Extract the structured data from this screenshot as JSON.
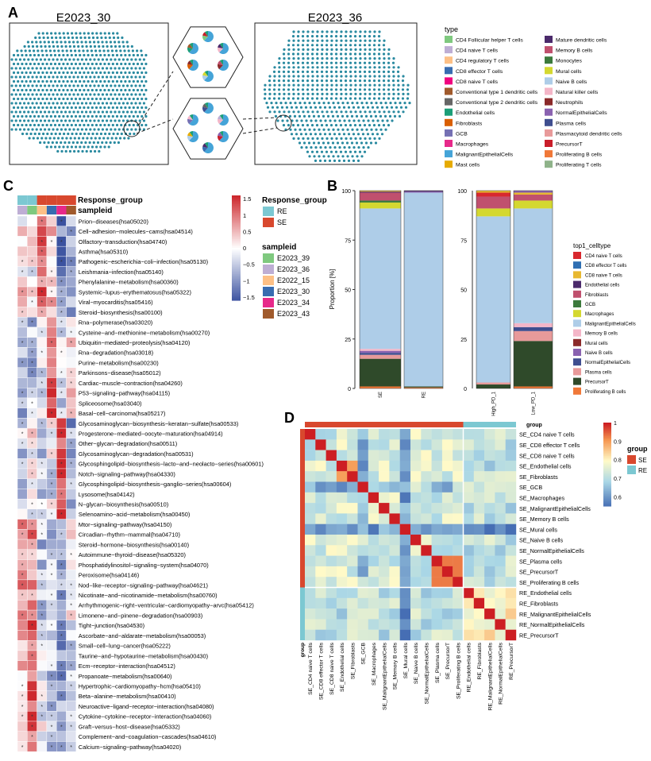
{
  "panel_letters": [
    "A",
    "B",
    "C",
    "D"
  ],
  "panel_a": {
    "left_title": "E2023_30",
    "right_title": "E2023_36",
    "legend_title": "type",
    "types": [
      {
        "label": "CD4 Follicular helper T cells",
        "color": "#7fc97f"
      },
      {
        "label": "CD4 naive T cells",
        "color": "#beaed4"
      },
      {
        "label": "CD4 regulatory T cells",
        "color": "#fdc086"
      },
      {
        "label": "CD8 effector T cells",
        "color": "#386cb0"
      },
      {
        "label": "CD8 naive T cells",
        "color": "#f0027f"
      },
      {
        "label": "Conventional type 1 dendritic cells",
        "color": "#a05a2c"
      },
      {
        "label": "Conventional type 2 dendritic cells",
        "color": "#666666"
      },
      {
        "label": "Endothelial cells",
        "color": "#1b9e77"
      },
      {
        "label": "Fibroblasts",
        "color": "#d95f02"
      },
      {
        "label": "GCB",
        "color": "#7570b3"
      },
      {
        "label": "Macrophages",
        "color": "#e7298a"
      },
      {
        "label": "MalignantEpithelialCells",
        "color": "#45a4d8"
      },
      {
        "label": "Mast cells",
        "color": "#e6ab02"
      },
      {
        "label": "Mature dendritic cells",
        "color": "#4b2a6b"
      },
      {
        "label": "Memory B cells",
        "color": "#c0506e"
      },
      {
        "label": "Monocytes",
        "color": "#3c7a3c"
      },
      {
        "label": "Mural cells",
        "color": "#d4d830"
      },
      {
        "label": "Naive B cells",
        "color": "#aecde8"
      },
      {
        "label": "Natural killer cells",
        "color": "#f4b6c8"
      },
      {
        "label": "Neutrophils",
        "color": "#8b2a2a"
      },
      {
        "label": "NormalEpithelialCells",
        "color": "#8a62b0"
      },
      {
        "label": "Plasma cells",
        "color": "#3f4e8f"
      },
      {
        "label": "Plasmacytoid dendritic cells",
        "color": "#e89a9a"
      },
      {
        "label": "PrecursorT",
        "color": "#c91e2a"
      },
      {
        "label": "Proliferating B cells",
        "color": "#f07838"
      },
      {
        "label": "Proliferating T cells",
        "color": "#8fb38a"
      }
    ]
  },
  "panel_b": {
    "ylabel": "Proportion [%]",
    "yticks": [
      "0",
      "25",
      "50",
      "75",
      "100"
    ],
    "legend_title": "top1_celltype",
    "legend": [
      {
        "label": "CD4 naive T cells",
        "color": "#d8282e"
      },
      {
        "label": "CD8 effector T cells",
        "color": "#2f6fb3"
      },
      {
        "label": "CD8 naive T cells",
        "color": "#e8b830"
      },
      {
        "label": "Endothelial cells",
        "color": "#4b2a6b"
      },
      {
        "label": "Fibroblasts",
        "color": "#c0506e"
      },
      {
        "label": "GCB",
        "color": "#3c7a3c"
      },
      {
        "label": "Macrophages",
        "color": "#d4d830"
      },
      {
        "label": "MalignantEpithelialCells",
        "color": "#aecde8"
      },
      {
        "label": "Memory B cells",
        "color": "#f4b6c8"
      },
      {
        "label": "Mural cells",
        "color": "#8b2a2a"
      },
      {
        "label": "Naive B cells",
        "color": "#8a62b0"
      },
      {
        "label": "NormalEpithelialCells",
        "color": "#3f4e8f"
      },
      {
        "label": "Plasma cells",
        "color": "#e89a9a"
      },
      {
        "label": "PrecursorT",
        "color": "#2f4a2a"
      },
      {
        "label": "Proliferating B  cells",
        "color": "#f07838"
      }
    ],
    "bars": [
      {
        "label": "SE",
        "segments": [
          [
            "Proliferating B  cells",
            1
          ],
          [
            "PrecursorT",
            14
          ],
          [
            "Plasma cells",
            2
          ],
          [
            "NormalEpithelialCells",
            1
          ],
          [
            "Naive B cells",
            1
          ],
          [
            "Memory B cells",
            1
          ],
          [
            "MalignantEpithelialCells",
            71
          ],
          [
            "Macrophages",
            3
          ],
          [
            "GCB",
            1
          ],
          [
            "Fibroblasts",
            4
          ],
          [
            "Endothelial cells",
            0.5
          ],
          [
            "CD8 naive T cells",
            0.5
          ]
        ]
      },
      {
        "label": "RE",
        "segments": [
          [
            "Proliferating B  cells",
            0.5
          ],
          [
            "PrecursorT",
            0.5
          ],
          [
            "MalignantEpithelialCells",
            98
          ],
          [
            "Naive B cells",
            0.5
          ],
          [
            "Endothelial cells",
            0.5
          ]
        ]
      },
      {
        "label": "High_PD_1",
        "segments": [
          [
            "PrecursorT",
            2
          ],
          [
            "Plasma cells",
            1
          ],
          [
            "MalignantEpithelialCells",
            84
          ],
          [
            "Macrophages",
            4
          ],
          [
            "Fibroblasts",
            6
          ],
          [
            "CD4 naive T cells",
            2
          ],
          [
            "CD8 naive T cells",
            1
          ]
        ]
      },
      {
        "label": "Low_PD_1",
        "segments": [
          [
            "Proliferating B  cells",
            1
          ],
          [
            "PrecursorT",
            23
          ],
          [
            "Plasma cells",
            5
          ],
          [
            "NormalEpithelialCells",
            2
          ],
          [
            "Memory B cells",
            2
          ],
          [
            "MalignantEpithelialCells",
            58
          ],
          [
            "Macrophages",
            4
          ],
          [
            "Fibroblasts",
            3
          ],
          [
            "CD8 naive T cells",
            1
          ],
          [
            "Naive B cells",
            1
          ]
        ]
      }
    ]
  },
  "panel_c": {
    "row_labels": [
      "Response_group",
      "sampleid"
    ],
    "scale_ticks": [
      "1.5",
      "1",
      "0.5",
      "0",
      "−0.5",
      "−1",
      "−1.5"
    ],
    "legend_response_title": "Response_group",
    "response_levels": [
      {
        "label": "RE",
        "color": "#7cc8d2"
      },
      {
        "label": "SE",
        "color": "#d8482e"
      }
    ],
    "legend_sample_title": "sampleid",
    "samples": [
      {
        "label": "E2023_39",
        "color": "#7fc97f"
      },
      {
        "label": "E2023_36",
        "color": "#beaed4"
      },
      {
        "label": "E2022_15",
        "color": "#fdc086"
      },
      {
        "label": "E2023_30",
        "color": "#386cb0"
      },
      {
        "label": "E2023_34",
        "color": "#e7298a"
      },
      {
        "label": "E2023_43",
        "color": "#a05a2c"
      }
    ],
    "col_response": [
      "RE",
      "RE",
      "SE",
      "SE",
      "SE",
      "SE"
    ],
    "col_sample": [
      "E2023_36",
      "E2023_39",
      "E2022_15",
      "E2023_30",
      "E2023_34",
      "E2023_43"
    ],
    "pathways": [
      "Prion−diseases(hsa05020)",
      "Cell−adhesion−molecules−cams(hsa04514)",
      "Olfactory−transduction(hsa04740)",
      "Asthma(hsa05310)",
      "Pathogenic−escherichia−coli−infection(hsa05130)",
      "Leishmania−infection(hsa05140)",
      "Phenylalanine−metabolism(hsa00360)",
      "Systemic−lupus−erythematosus(hsa05322)",
      "Viral−myocarditis(hsa05416)",
      "Steroid−biosynthesis(hsa00100)",
      "Rna−polymerase(hsa03020)",
      "Cysteine−and−methionine−metabolism(hsa00270)",
      "Ubiquitin−mediated−proteolysis(hsa04120)",
      "Rna−degradation(hsa03018)",
      "Purine−metabolism(hsa00230)",
      "Parkinsons−disease(hsa05012)",
      "Cardiac−muscle−contraction(hsa04260)",
      "P53−signaling−pathway(hsa04115)",
      "Spliceosome(hsa03040)",
      "Basal−cell−carcinoma(hsa05217)",
      "Glycosaminoglycan−biosynthesis−keratan−sulfate(hsa00533)",
      "Progesterone−mediated−oocyte−maturation(hsa04914)",
      "Other−glycan−degradation(hsa00511)",
      "Glycosaminoglycan−degradation(hsa00531)",
      "Glycosphingolipid−biosynthesis−lacto−and−neolacto−series(hsa00601)",
      "Notch−signaling−pathway(hsa04330)",
      "Glycosphingolipid−biosynthesis−ganglio−series(hsa00604)",
      "Lysosome(hsa04142)",
      "N−glycan−biosynthesis(hsa00510)",
      "Selenoamino−acid−metabolism(hsa00450)",
      "Mtor−signaling−pathway(hsa04150)",
      "Circadian−rhythm−mammal(hsa04710)",
      "Steroid−hormone−biosynthesis(hsa00140)",
      "Autoimmune−thyroid−disease(hsa05320)",
      "Phosphatidylinositol−signaling−system(hsa04070)",
      "Peroxisome(hsa04146)",
      "Nod−like−receptor−signaling−pathway(hsa04621)",
      "Nicotinate−and−nicotinamide−metabolism(hsa00760)",
      "Arrhythmogenic−right−ventricular−cardiomyopathy−arvc(hsa05412)",
      "Limonene−and−pinene−degradation(hsa00903)",
      "Tight−junction(hsa04530)",
      "Ascorbate−and−aldarate−metabolism(hsa00053)",
      "Small−cell−lung−cancer(hsa05222)",
      "Taurine−and−hypotaurine−metabolism(hsa00430)",
      "Ecm−receptor−interaction(hsa04512)",
      "Propanoate−metabolism(hsa00640)",
      "Hypertrophic−cardiomyopathy−hcm(hsa05410)",
      "Beta−alanine−metabolism(hsa00410)",
      "Neuroactive−ligand−receptor−interaction(hsa04080)",
      "Cytokine−cytokine−receptor−interaction(hsa04060)",
      "Graft−versus−host−disease(hsa05332)",
      "Complement−and−coagulation−cascades(hsa04610)",
      "Calcium−signaling−pathway(hsa04020)"
    ]
  },
  "panel_d": {
    "group_label": "group",
    "scale_ticks": [
      "1",
      "0.9",
      "0.8",
      "0.7",
      "0.6"
    ],
    "legend_title": "group",
    "legend": [
      {
        "label": "SE",
        "color": "#d8482e"
      },
      {
        "label": "RE",
        "color": "#7cc8d2"
      }
    ],
    "labels": [
      "SE_CD4 naive T cells",
      "SE_CD8 effector T cells",
      "SE_CD8 naive T cells",
      "SE_Endothelial cells",
      "SE_Fibroblasts",
      "SE_GCB",
      "SE_Macrophages",
      "SE_MalignantEpithelialCells",
      "SE_Memory B cells",
      "SE_Mural cells",
      "SE_Naive B cells",
      "SE_NormalEpithelialCells",
      "SE_Plasma cells",
      "SE_PrecursorT",
      "SE_Proliferating B cells",
      "RE_Endothelial cells",
      "RE_Fibroblasts",
      "RE_MalignantEpithelialCells",
      "RE_NormalEpithelialCells",
      "RE_PrecursorT"
    ]
  }
}
